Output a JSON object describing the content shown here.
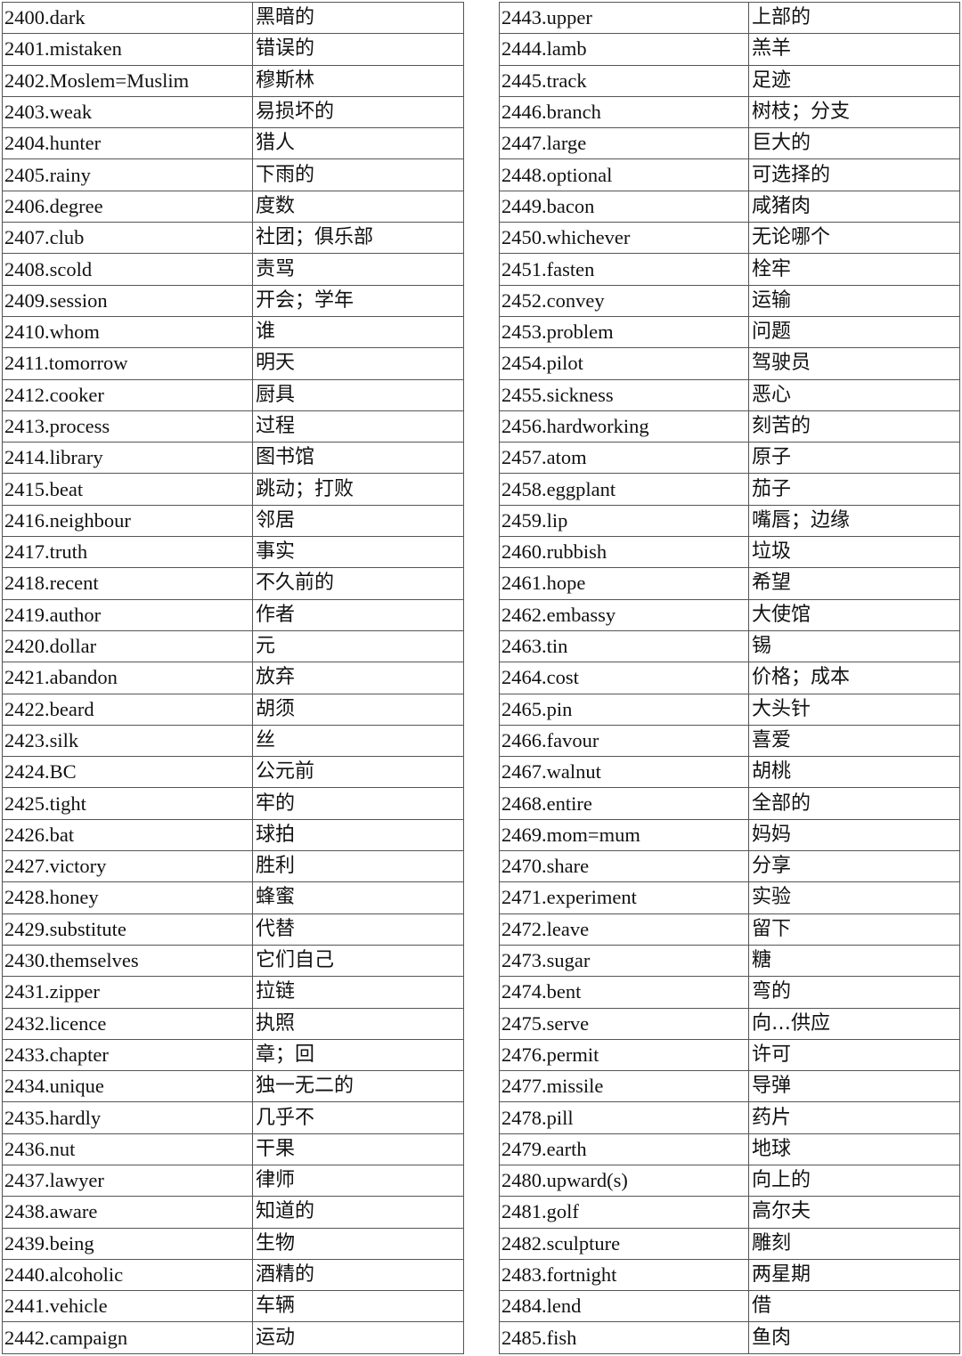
{
  "tables": [
    {
      "rows": [
        [
          "2400.dark",
          "黑暗的"
        ],
        [
          "2401.mistaken",
          "错误的"
        ],
        [
          "2402.Moslem=Muslim",
          "穆斯林"
        ],
        [
          "2403.weak",
          "易损坏的"
        ],
        [
          "2404.hunter",
          "猎人"
        ],
        [
          "2405.rainy",
          "下雨的"
        ],
        [
          "2406.degree",
          "度数"
        ],
        [
          "2407.club",
          "社团；俱乐部"
        ],
        [
          "2408.scold",
          "责骂"
        ],
        [
          "2409.session",
          "开会；学年"
        ],
        [
          "2410.whom",
          "谁"
        ],
        [
          "2411.tomorrow",
          "明天"
        ],
        [
          "2412.cooker",
          "厨具"
        ],
        [
          "2413.process",
          "过程"
        ],
        [
          "2414.library",
          "图书馆"
        ],
        [
          "2415.beat",
          "跳动；打败"
        ],
        [
          "2416.neighbour",
          "邻居"
        ],
        [
          "2417.truth",
          "事实"
        ],
        [
          "2418.recent",
          "不久前的"
        ],
        [
          "2419.author",
          "作者"
        ],
        [
          "2420.dollar",
          "元"
        ],
        [
          "2421.abandon",
          "放弃"
        ],
        [
          "2422.beard",
          "胡须"
        ],
        [
          "2423.silk",
          "丝"
        ],
        [
          "2424.BC",
          "公元前"
        ],
        [
          "2425.tight",
          "牢的"
        ],
        [
          "2426.bat",
          "球拍"
        ],
        [
          "2427.victory",
          "胜利"
        ],
        [
          "2428.honey",
          "蜂蜜"
        ],
        [
          "2429.substitute",
          "代替"
        ],
        [
          "2430.themselves",
          "它们自己"
        ],
        [
          "2431.zipper",
          "拉链"
        ],
        [
          "2432.licence",
          "执照"
        ],
        [
          "2433.chapter",
          "章；回"
        ],
        [
          "2434.unique",
          "独一无二的"
        ],
        [
          "2435.hardly",
          "几乎不"
        ],
        [
          "2436.nut",
          "干果"
        ],
        [
          "2437.lawyer",
          "律师"
        ],
        [
          "2438.aware",
          "知道的"
        ],
        [
          "2439.being",
          "生物"
        ],
        [
          "2440.alcoholic",
          "酒精的"
        ],
        [
          "2441.vehicle",
          "车辆"
        ],
        [
          "2442.campaign",
          "运动"
        ]
      ]
    },
    {
      "rows": [
        [
          "2443.upper",
          "上部的"
        ],
        [
          "2444.lamb",
          "羔羊"
        ],
        [
          "2445.track",
          "足迹"
        ],
        [
          "2446.branch",
          "树枝；分支"
        ],
        [
          "2447.large",
          "巨大的"
        ],
        [
          "2448.optional",
          "可选择的"
        ],
        [
          "2449.bacon",
          "咸猪肉"
        ],
        [
          "2450.whichever",
          "无论哪个"
        ],
        [
          "2451.fasten",
          "栓牢"
        ],
        [
          "2452.convey",
          "运输"
        ],
        [
          "2453.problem",
          "问题"
        ],
        [
          "2454.pilot",
          "驾驶员"
        ],
        [
          "2455.sickness",
          "恶心"
        ],
        [
          "2456.hardworking",
          "刻苦的"
        ],
        [
          "2457.atom",
          "原子"
        ],
        [
          "2458.eggplant",
          "茄子"
        ],
        [
          "2459.lip",
          "嘴唇；边缘"
        ],
        [
          "2460.rubbish",
          "垃圾"
        ],
        [
          "2461.hope",
          "希望"
        ],
        [
          "2462.embassy",
          "大使馆"
        ],
        [
          "2463.tin",
          "锡"
        ],
        [
          "2464.cost",
          "价格；成本"
        ],
        [
          "2465.pin",
          "大头针"
        ],
        [
          "2466.favour",
          "喜爱"
        ],
        [
          "2467.walnut",
          "胡桃"
        ],
        [
          "2468.entire",
          "全部的"
        ],
        [
          "2469.mom=mum",
          "妈妈"
        ],
        [
          "2470.share",
          "分享"
        ],
        [
          "2471.experiment",
          "实验"
        ],
        [
          "2472.leave",
          "留下"
        ],
        [
          "2473.sugar",
          "糖"
        ],
        [
          "2474.bent",
          "弯的"
        ],
        [
          "2475.serve",
          "向…供应"
        ],
        [
          "2476.permit",
          "许可"
        ],
        [
          "2477.missile",
          "导弹"
        ],
        [
          "2478.pill",
          "药片"
        ],
        [
          "2479.earth",
          "地球"
        ],
        [
          "2480.upward(s)",
          "向上的"
        ],
        [
          "2481.golf",
          "高尔夫"
        ],
        [
          "2482.sculpture",
          "雕刻"
        ],
        [
          "2483.fortnight",
          "两星期"
        ],
        [
          "2484.lend",
          "借"
        ],
        [
          "2485.fish",
          "鱼肉"
        ]
      ]
    }
  ]
}
